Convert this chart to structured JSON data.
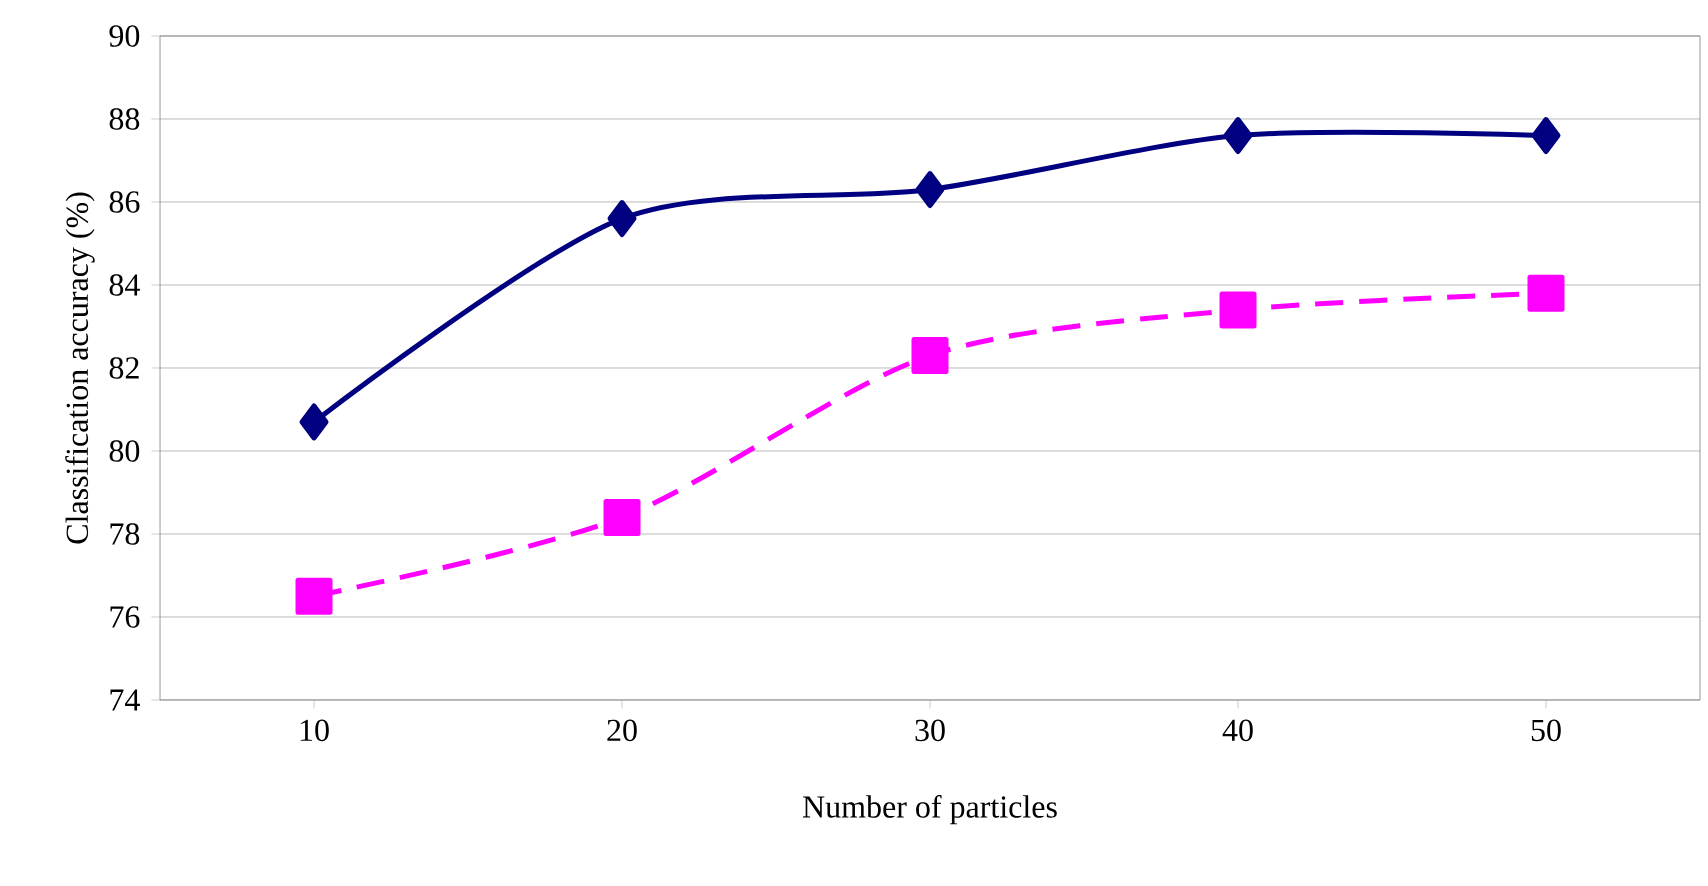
{
  "chart_data": {
    "type": "line",
    "xlabel": "Number of particles",
    "ylabel": "Classification accuracy (%)",
    "categories": [
      "10",
      "20",
      "30",
      "40",
      "50"
    ],
    "series": [
      {
        "color": "#000080",
        "marker": "diamond",
        "line_style": "solid",
        "values": [
          80.7,
          85.6,
          86.3,
          87.6,
          87.6
        ]
      },
      {
        "color": "#ff00ff",
        "marker": "square",
        "line_style": "dashed",
        "values": [
          76.5,
          78.4,
          82.3,
          83.4,
          83.8
        ]
      }
    ],
    "ylim": [
      74,
      90
    ],
    "yticks": [
      74,
      76,
      78,
      80,
      82,
      84,
      86,
      88,
      90
    ],
    "grid": "y"
  }
}
